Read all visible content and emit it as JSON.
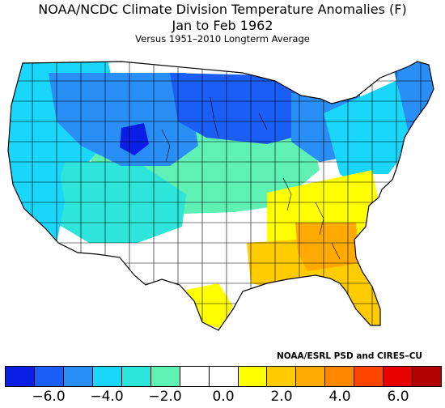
{
  "title_line1": "NOAA/NCDC Climate Division Temperature Anomalies (F)",
  "title_line2": "Jan to Feb 1962",
  "subtitle": "Versus 1951–2010 Longterm Average",
  "credit": "NOAA/ESRL PSD and CIRES–CU",
  "legend": {
    "colors": [
      "#0a1ee6",
      "#1a5ef5",
      "#2a8ef7",
      "#19d6fa",
      "#2ee5da",
      "#5ff0b4",
      "#ffffff",
      "#ffffff",
      "#ffff00",
      "#ffcc00",
      "#ffaa00",
      "#ff8800",
      "#ff4400",
      "#e60000",
      "#b30000"
    ],
    "tick_labels": [
      "−6.0",
      "−4.0",
      "−2.0",
      "0.0",
      "2.0",
      "4.0",
      "6.0"
    ],
    "tick_values": [
      -6,
      -4,
      -2,
      0,
      2,
      4,
      6
    ],
    "range": [
      -7.5,
      7.5
    ],
    "step": 1.0
  },
  "regions": [
    {
      "name": "upper-midwest",
      "anomaly": -5.5,
      "color": "#1a5ef5"
    },
    {
      "name": "wyoming-core",
      "anomaly": -6.5,
      "color": "#0a1ee6"
    },
    {
      "name": "northern-rockies",
      "anomaly": -4.5,
      "color": "#2a8ef7"
    },
    {
      "name": "northwest",
      "anomaly": -3.0,
      "color": "#19d6fa"
    },
    {
      "name": "california",
      "anomaly": -2.5,
      "color": "#19d6fa"
    },
    {
      "name": "southwest",
      "anomaly": -2.0,
      "color": "#2ee5da"
    },
    {
      "name": "central-plains",
      "anomaly": -1.5,
      "color": "#5ff0b4"
    },
    {
      "name": "great-lakes",
      "anomaly": -4.0,
      "color": "#2a8ef7"
    },
    {
      "name": "northeast",
      "anomaly": -2.5,
      "color": "#19d6fa"
    },
    {
      "name": "new-england",
      "anomaly": -3.5,
      "color": "#2a8ef7"
    },
    {
      "name": "southern-plains",
      "anomaly": 0.3,
      "color": "#ffffff"
    },
    {
      "name": "tennessee-valley",
      "anomaly": 1.5,
      "color": "#ffff00"
    },
    {
      "name": "gulf-coast",
      "anomaly": 2.5,
      "color": "#ffcc00"
    },
    {
      "name": "georgia-core",
      "anomaly": 3.5,
      "color": "#ffaa00"
    },
    {
      "name": "florida",
      "anomaly": 2.5,
      "color": "#ffcc00"
    },
    {
      "name": "south-texas",
      "anomaly": 1.5,
      "color": "#ffff00"
    },
    {
      "name": "mid-atlantic",
      "anomaly": 0.2,
      "color": "#ffffff"
    }
  ]
}
